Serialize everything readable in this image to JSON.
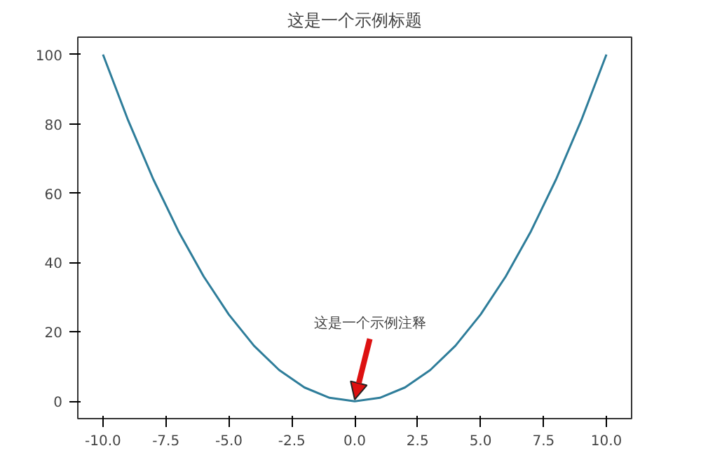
{
  "chart_data": {
    "type": "line",
    "title": "这是一个示例标题",
    "x": [
      -10,
      -9,
      -8,
      -7,
      -6,
      -5,
      -4,
      -3,
      -2,
      -1,
      0,
      1,
      2,
      3,
      4,
      5,
      6,
      7,
      8,
      9,
      10
    ],
    "series": [
      {
        "color": "#2e7d9a",
        "values": [
          100,
          81,
          64,
          49,
          36,
          25,
          16,
          9,
          4,
          1,
          0,
          1,
          4,
          9,
          16,
          25,
          36,
          49,
          64,
          81,
          100
        ]
      }
    ],
    "xlim": [
      -11,
      11
    ],
    "ylim": [
      -5,
      105
    ],
    "xticks": [
      {
        "value": -10,
        "label": "-10.0"
      },
      {
        "value": -7.5,
        "label": "-7.5"
      },
      {
        "value": -5,
        "label": "-5.0"
      },
      {
        "value": -2.5,
        "label": "-2.5"
      },
      {
        "value": 0,
        "label": "0.0"
      },
      {
        "value": 2.5,
        "label": "2.5"
      },
      {
        "value": 5,
        "label": "5.0"
      },
      {
        "value": 7.5,
        "label": "7.5"
      },
      {
        "value": 10,
        "label": "10.0"
      }
    ],
    "yticks": [
      0,
      20,
      40,
      60,
      80,
      100
    ],
    "annotations": [
      {
        "text": "这是一个示例注释",
        "x": 0,
        "y": 0
      }
    ],
    "grid": false,
    "marker": "none",
    "line_style": "solid"
  }
}
